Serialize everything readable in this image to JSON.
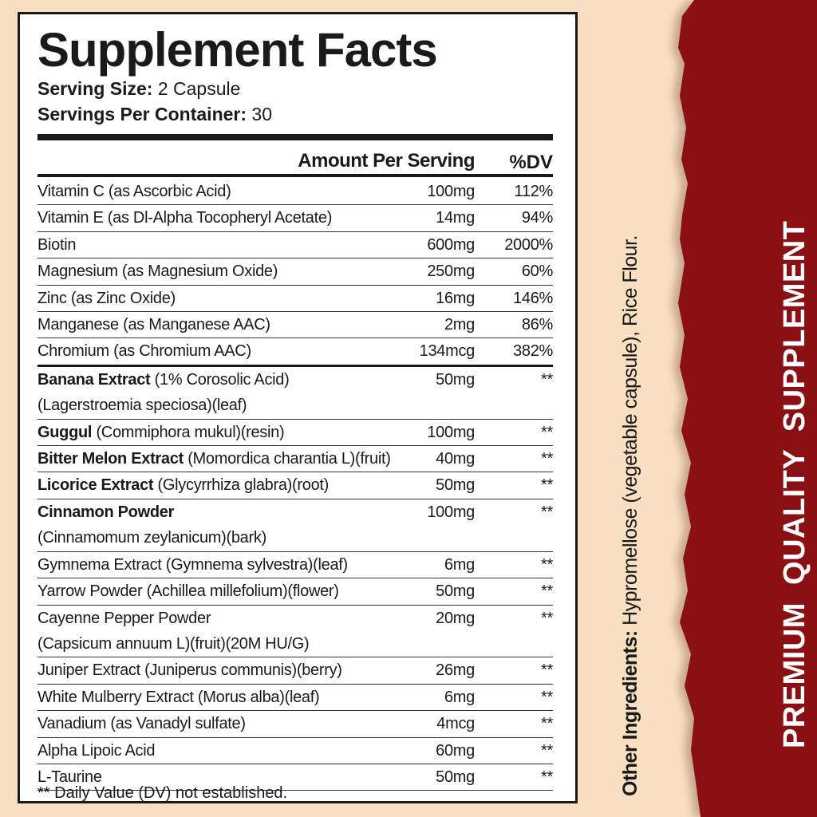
{
  "label": {
    "title": "Supplement Facts",
    "serving_size_label": "Serving Size:",
    "serving_size_value": "2 Capsule",
    "servings_per_container_label": "Servings Per Container:",
    "servings_per_container_value": "30",
    "header_amount": "Amount Per Serving",
    "header_dv": "%DV",
    "rows": [
      {
        "bold": "",
        "name": "Vitamin C (as Ascorbic Acid)",
        "line2": "",
        "amount": "100mg",
        "dv": "112%"
      },
      {
        "bold": "",
        "name": "Vitamin E (as Dl-Alpha Tocopheryl Acetate)",
        "line2": "",
        "amount": "14mg",
        "dv": "94%"
      },
      {
        "bold": "",
        "name": "Biotin",
        "line2": "",
        "amount": "600mg",
        "dv": "2000%"
      },
      {
        "bold": "",
        "name": "Magnesium (as Magnesium Oxide)",
        "line2": "",
        "amount": "250mg",
        "dv": "60%"
      },
      {
        "bold": "",
        "name": "Zinc (as Zinc Oxide)",
        "line2": "",
        "amount": "16mg",
        "dv": "146%"
      },
      {
        "bold": "",
        "name": "Manganese (as Manganese AAC)",
        "line2": "",
        "amount": "2mg",
        "dv": "86%"
      },
      {
        "bold": "",
        "name": "Chromium (as Chromium AAC)",
        "line2": "",
        "amount": "134mcg",
        "dv": "382%"
      },
      {
        "bold": "Banana Extract",
        "name": " (1% Corosolic Acid)",
        "line2": "(Lagerstroemia speciosa)(leaf)",
        "amount": "50mg",
        "dv": "**"
      },
      {
        "bold": "Guggul",
        "name": " (Commiphora mukul)(resin)",
        "line2": "",
        "amount": "100mg",
        "dv": "**"
      },
      {
        "bold": "Bitter Melon Extract",
        "name": " (Momordica charantia L)(fruit)",
        "line2": "",
        "amount": "40mg",
        "dv": "**"
      },
      {
        "bold": "Licorice Extract",
        "name": " (Glycyrrhiza glabra)(root)",
        "line2": "",
        "amount": "50mg",
        "dv": "**"
      },
      {
        "bold": "Cinnamon Powder",
        "name": "",
        "line2": "(Cinnamomum zeylanicum)(bark)",
        "amount": "100mg",
        "dv": "**"
      },
      {
        "bold": "",
        "name": "Gymnema Extract (Gymnema sylvestra)(leaf)",
        "line2": "",
        "amount": "6mg",
        "dv": "**"
      },
      {
        "bold": "",
        "name": "Yarrow Powder (Achillea millefolium)(flower)",
        "line2": "",
        "amount": "50mg",
        "dv": "**"
      },
      {
        "bold": "",
        "name": "Cayenne Pepper Powder",
        "line2": "(Capsicum annuum L)(fruit)(20M HU/G)",
        "amount": "20mg",
        "dv": "**"
      },
      {
        "bold": "",
        "name": "Juniper Extract (Juniperus communis)(berry)",
        "line2": "",
        "amount": "26mg",
        "dv": "**"
      },
      {
        "bold": "",
        "name": "White Mulberry Extract (Morus alba)(leaf)",
        "line2": "",
        "amount": "6mg",
        "dv": "**"
      },
      {
        "bold": "",
        "name": "Vanadium (as Vanadyl sulfate)",
        "line2": "",
        "amount": "4mcg",
        "dv": "**"
      },
      {
        "bold": "",
        "name": "Alpha Lipoic Acid",
        "line2": "",
        "amount": "60mg",
        "dv": "**"
      },
      {
        "bold": "",
        "name": "L-Taurine",
        "line2": "",
        "amount": "50mg",
        "dv": "**"
      }
    ],
    "footnote": "** Daily Value (DV) not established."
  },
  "other_ingredients": {
    "label": "Other Ingredients:",
    "value": " Hypromellose (vegetable capsule), Rice Flour."
  },
  "banner": {
    "text": "PREMIUM  QUALITY  SUPPLEMENT",
    "color": "#8a1014"
  },
  "colors": {
    "background": "#f9dfc1",
    "panel_red": "#8a1014"
  }
}
